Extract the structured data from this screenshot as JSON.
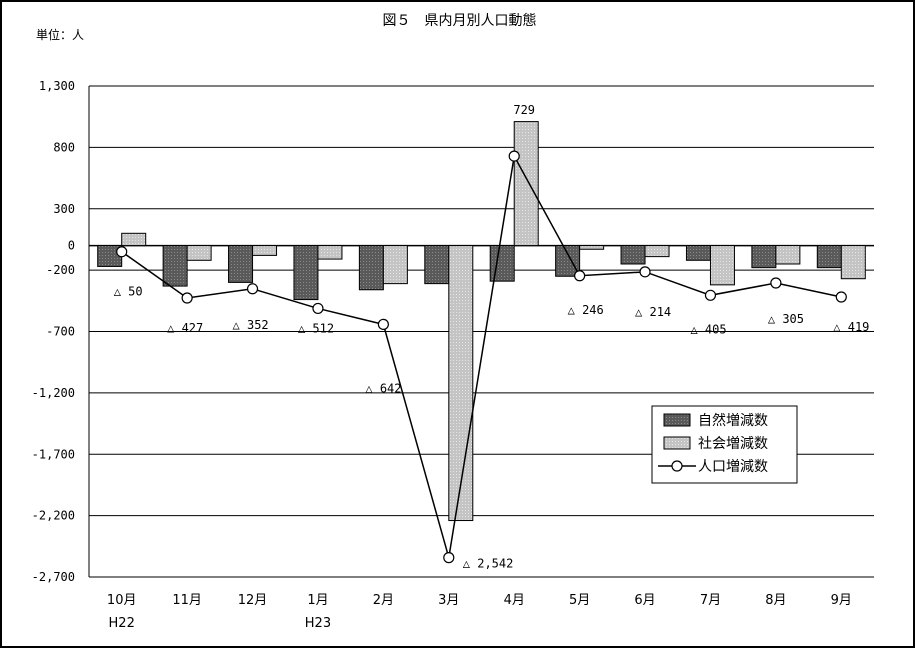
{
  "chart_data": {
    "type": "bar",
    "title": "図５　県内月別人口動態",
    "unit_label": "単位：人",
    "categories": [
      "10月",
      "11月",
      "12月",
      "1月",
      "2月",
      "3月",
      "4月",
      "5月",
      "6月",
      "7月",
      "8月",
      "9月"
    ],
    "category_sublabels": [
      "H22",
      "",
      "",
      "H23",
      "",
      "",
      "",
      "",
      "",
      "",
      "",
      ""
    ],
    "ylim": [
      -2700,
      1300
    ],
    "yticks": [
      1300,
      800,
      300,
      0,
      -200,
      -700,
      -1200,
      -1700,
      -2200,
      -2700
    ],
    "ytick_labels": [
      "1,300",
      "800",
      "300",
      "0",
      "-200",
      "-700",
      "-1,200",
      "-1,700",
      "-2,200",
      "-2,700"
    ],
    "grid": true,
    "legend_position": "lower-right",
    "series": [
      {
        "name": "自然増減数",
        "kind": "bar",
        "color": "#555555",
        "values": [
          -170,
          -330,
          -300,
          -440,
          -360,
          -310,
          -290,
          -250,
          -150,
          -120,
          -180,
          -180
        ]
      },
      {
        "name": "社会増減数",
        "kind": "bar",
        "color": "#c0c0c0",
        "values": [
          100,
          -120,
          -80,
          -110,
          -310,
          -2240,
          1010,
          -30,
          -90,
          -320,
          -150,
          -270
        ]
      },
      {
        "name": "人口増減数",
        "kind": "line",
        "color": "#000000",
        "values": [
          -50,
          -427,
          -352,
          -512,
          -642,
          -2542,
          729,
          -246,
          -214,
          -405,
          -305,
          -419
        ]
      }
    ],
    "point_labels": [
      "△ 50",
      "△ 427",
      "△ 352",
      "△ 512",
      "△ 642",
      "△ 2,542",
      "729",
      "△ 246",
      "△ 214",
      "△ 405",
      "△ 305",
      "△ 419"
    ]
  }
}
